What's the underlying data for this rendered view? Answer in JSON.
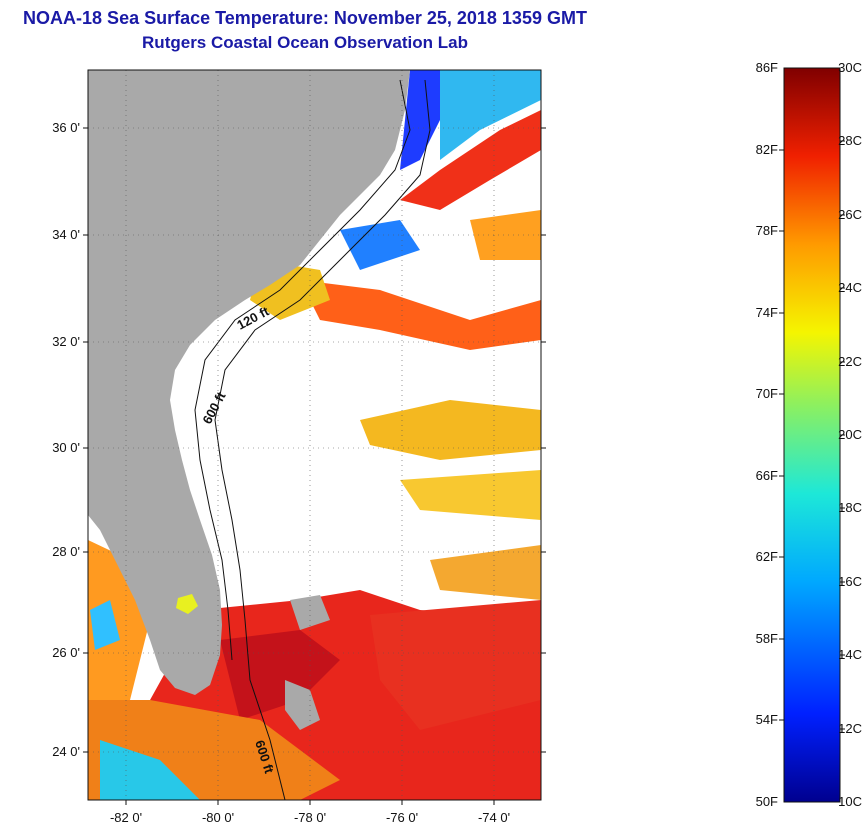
{
  "header": {
    "title": "NOAA-18 Sea Surface Temperature:  November 25, 2018 1359 GMT",
    "subtitle": "Rutgers Coastal Ocean Observation Lab"
  },
  "map": {
    "lat_ticks": [
      "36 0'",
      "34 0'",
      "32 0'",
      "30 0'",
      "28 0'",
      "26 0'",
      "24 0'"
    ],
    "lon_ticks": [
      "-82 0'",
      "-80 0'",
      "-78 0'",
      "-76 0'",
      "-74 0'"
    ],
    "contour_labels": [
      "120 ft",
      "600 ft",
      "600 ft"
    ],
    "colors": {
      "land": "#a9a9a9",
      "cloud": "#ffffff",
      "warm": "#e8261c",
      "cool": "#1e3cff"
    }
  },
  "colorbar": {
    "fahrenheit_labels": [
      "86F",
      "82F",
      "78F",
      "74F",
      "70F",
      "66F",
      "62F",
      "58F",
      "54F",
      "50F"
    ],
    "celsius_labels": [
      "30C",
      "28C",
      "26C",
      "24C",
      "22C",
      "20C",
      "18C",
      "16C",
      "14C",
      "12C",
      "10C"
    ],
    "range_f": [
      50,
      86
    ],
    "range_c": [
      10,
      30
    ]
  }
}
